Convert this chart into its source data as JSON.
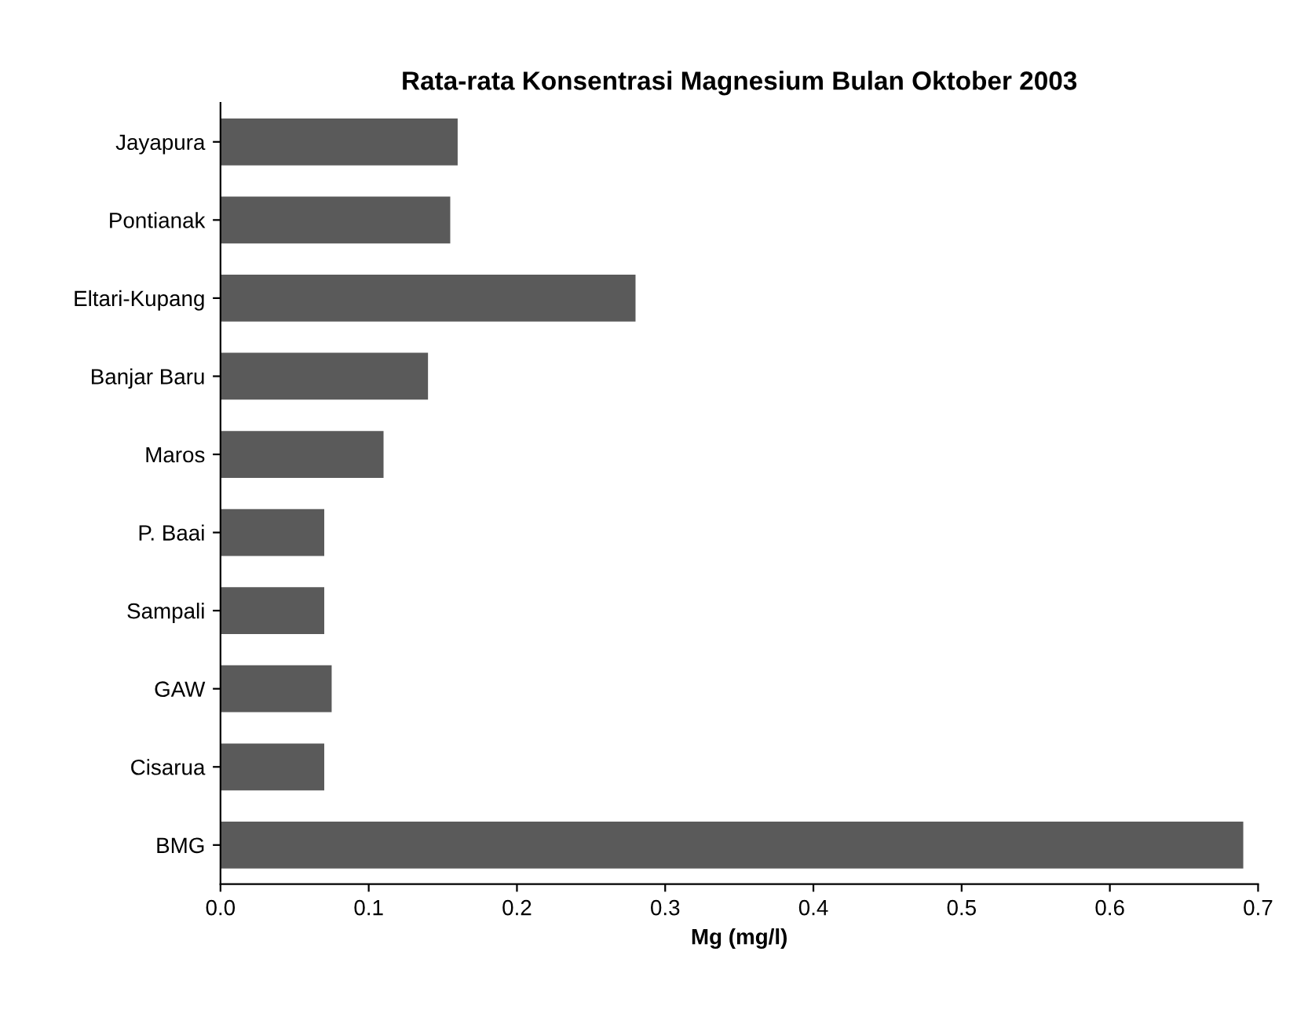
{
  "chart_data": {
    "type": "bar",
    "orientation": "horizontal",
    "title": "Rata-rata Konsentrasi Magnesium Bulan Oktober 2003",
    "xlabel": "Mg (mg/l)",
    "categories": [
      "Jayapura",
      "Pontianak",
      "Eltari-Kupang",
      "Banjar Baru",
      "Maros",
      "P. Baai",
      "Sampali",
      "GAW",
      "Cisarua",
      "BMG"
    ],
    "values": [
      0.16,
      0.155,
      0.28,
      0.14,
      0.11,
      0.07,
      0.07,
      0.075,
      0.07,
      0.69
    ],
    "color": "#5a5a5a",
    "xlim": [
      0,
      0.7
    ],
    "xticks": [
      {
        "value": 0,
        "label": "0.0"
      },
      0.1,
      0.2,
      0.3,
      0.4,
      0.5,
      0.6,
      0.7
    ],
    "grid": false
  }
}
